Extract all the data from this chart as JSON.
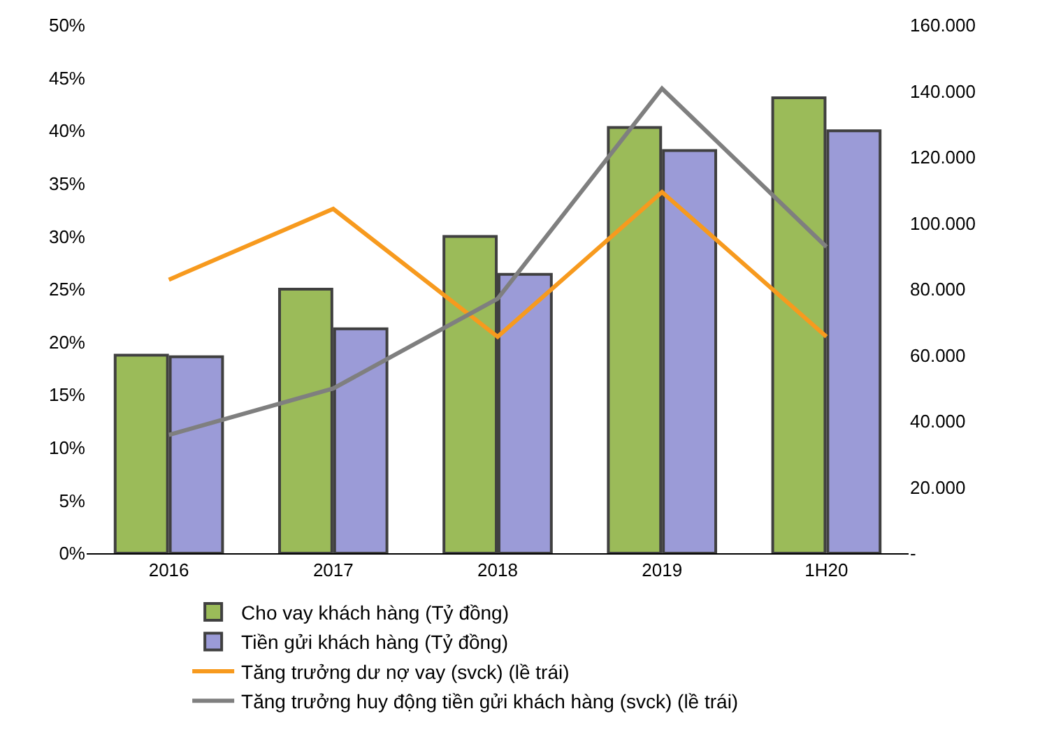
{
  "chart_data": {
    "type": "bar",
    "categories": [
      "2016",
      "2017",
      "2018",
      "2019",
      "1H20"
    ],
    "series": [
      {
        "name": "Cho vay khách hàng (Tỷ đồng)",
        "axis": "y2",
        "color": "#9bbb59",
        "values": [
          60000,
          80000,
          96000,
          129000,
          138000
        ]
      },
      {
        "name": "Tiền gửi khách hàng (Tỷ đồng)",
        "axis": "y2",
        "color": "#9b9bd7",
        "values": [
          59500,
          68000,
          84500,
          122000,
          128000
        ]
      },
      {
        "name": "Tăng trưởng dư nợ vay (svck) (lề trái)",
        "type": "line",
        "color": "#f79a1e",
        "values": [
          25.9,
          32.6,
          20.5,
          34.2,
          20.5
        ]
      },
      {
        "name": "Tăng trưởng huy động tiền gửi khách hàng (svck) (lề trái)",
        "type": "line",
        "color": "#7f7f7f",
        "values": [
          11.2,
          15.6,
          24.1,
          44.0,
          29.0
        ]
      }
    ],
    "ylim": [
      0,
      50
    ],
    "yticks": [
      {
        "value": 0,
        "label": "0%"
      },
      {
        "value": 5,
        "label": "5%"
      },
      {
        "value": 10,
        "label": "10%"
      },
      {
        "value": 15,
        "label": "15%"
      },
      {
        "value": 20,
        "label": "20%"
      },
      {
        "value": 25,
        "label": "25%"
      },
      {
        "value": 30,
        "label": "30%"
      },
      {
        "value": 35,
        "label": "35%"
      },
      {
        "value": 40,
        "label": "40%"
      },
      {
        "value": 45,
        "label": "45%"
      },
      {
        "value": 50,
        "label": "50%"
      }
    ],
    "y2lim": [
      0,
      160000
    ],
    "y2ticks": [
      {
        "value": 0,
        "label": "-"
      },
      {
        "value": 20000,
        "label": "20.000"
      },
      {
        "value": 40000,
        "label": "40.000"
      },
      {
        "value": 60000,
        "label": "60.000"
      },
      {
        "value": 80000,
        "label": "80.000"
      },
      {
        "value": 100000,
        "label": "100.000"
      },
      {
        "value": 120000,
        "label": "120.000"
      },
      {
        "value": 140000,
        "label": "140.000"
      },
      {
        "value": 160000,
        "label": "160.000"
      }
    ],
    "grid": false,
    "legend": "bottom",
    "marker": "none",
    "line_style": "solid"
  }
}
